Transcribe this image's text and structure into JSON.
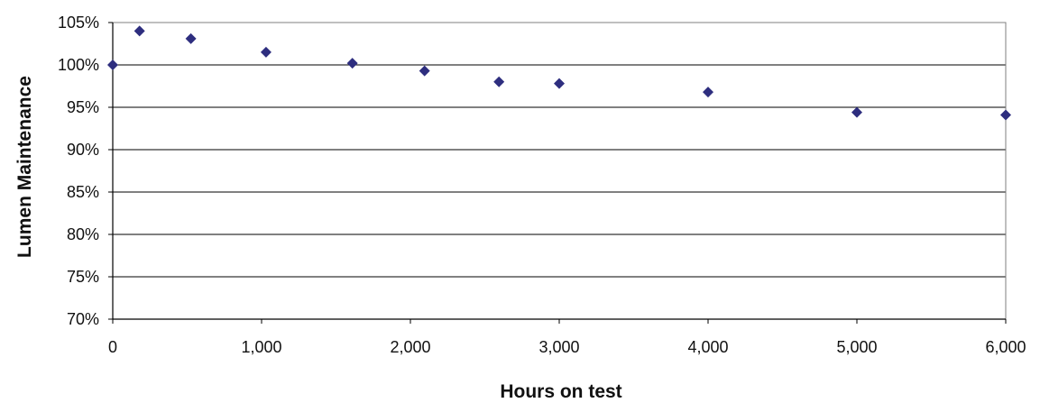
{
  "chart_data": {
    "type": "scatter",
    "title": "",
    "xlabel": "Hours on test",
    "ylabel": "Lumen Maintenance",
    "xlim": [
      0,
      6000
    ],
    "ylim": [
      70,
      105
    ],
    "x_ticks": [
      0,
      1000,
      2000,
      3000,
      4000,
      5000,
      6000
    ],
    "x_tick_labels": [
      "0",
      "1,000",
      "2,000",
      "3,000",
      "4,000",
      "5,000",
      "6,000"
    ],
    "y_ticks": [
      70,
      75,
      80,
      85,
      90,
      95,
      100,
      105
    ],
    "y_tick_labels": [
      "70%",
      "75%",
      "80%",
      "85%",
      "90%",
      "95%",
      "100%",
      "105%"
    ],
    "grid": "horizontal",
    "legend": "none",
    "marker": "diamond",
    "marker_color": "#2e2e7f",
    "gridline_color": "#000000",
    "series": [
      {
        "x": [
          0,
          180,
          525,
          1030,
          1610,
          2095,
          2595,
          3000,
          4000,
          5000,
          6000
        ],
        "y": [
          100.0,
          104.0,
          103.1,
          101.5,
          100.2,
          99.3,
          98.0,
          97.8,
          96.8,
          94.4,
          94.1
        ]
      }
    ]
  }
}
